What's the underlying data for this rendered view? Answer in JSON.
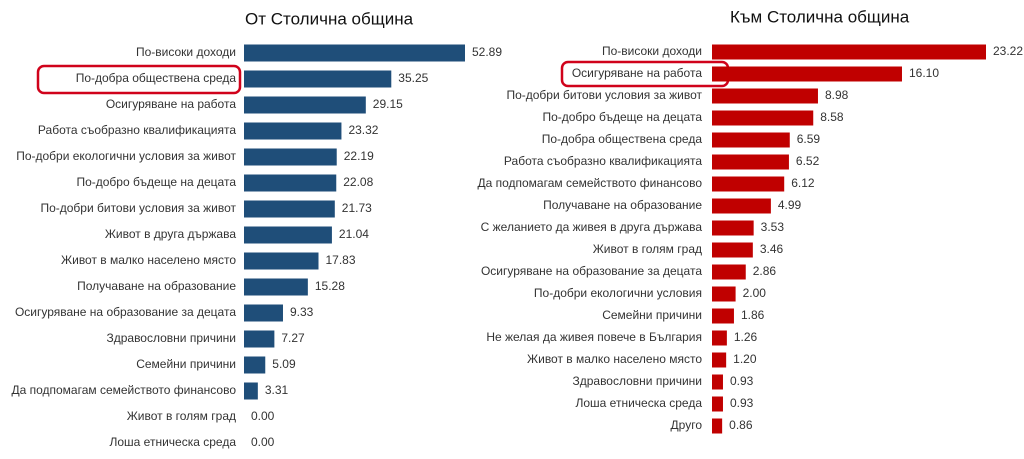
{
  "chart_data": [
    {
      "type": "bar",
      "orientation": "horizontal",
      "title": "От Столична община",
      "color": "#1f4e79",
      "categories": [
        "По-високи доходи",
        "По-добра обществена среда",
        "Осигуряване на работа",
        "Работа съобразно квалификацията",
        "По-добри екологични условия за живот",
        "По-добро бъдеще на децата",
        "По-добри битови условия за живот",
        "Живот в друга държава",
        "Живот в малко населено място",
        "Получаване на образование",
        "Осигуряване на образование за децата",
        "Здравословни причини",
        "Семейни причини",
        "Да подпомагам семейството финансово",
        "Живот в голям град",
        "Лоша етническа среда"
      ],
      "values": [
        52.89,
        35.25,
        29.15,
        23.32,
        22.19,
        22.08,
        21.73,
        21.04,
        17.83,
        15.28,
        9.33,
        7.27,
        5.09,
        3.31,
        0,
        0
      ],
      "value_labels": [
        "52.89",
        "35.25",
        "29.15",
        "23.32",
        "22.19",
        "22.08",
        "21.73",
        "21.04",
        "17.83",
        "15.28",
        "9.33",
        "7.27",
        "5.09",
        "3.31",
        "0.00",
        "0.00"
      ]
    },
    {
      "type": "bar",
      "orientation": "horizontal",
      "title": "Към Столична община",
      "color": "#c00000",
      "categories": [
        "По-високи доходи",
        "Осигуряване на работа",
        "По-добри битови условия за живот",
        "По-добро бъдеще на децата",
        "По-добра обществена среда",
        "Работа съобразно квалификацията",
        "Да подпомагам семейството финансово",
        "Получаване на образование",
        "С желанието да живея в друга държава",
        "Живот в голям град",
        "Осигуряване на образование за децата",
        "По-добри екологични условия",
        "Семейни причини",
        "Не желая да живея повече в България",
        "Живот в малко населено място",
        "Здравословни причини",
        "Лоша етническа среда",
        "Друго"
      ],
      "values": [
        23.22,
        16.1,
        8.98,
        8.58,
        6.59,
        6.52,
        6.12,
        4.99,
        3.53,
        3.46,
        2.86,
        2,
        1.86,
        1.26,
        1.2,
        0.93,
        0.93,
        0.86
      ],
      "value_labels": [
        "23.22",
        "16.10",
        "8.98",
        "8.58",
        "6.59",
        "6.52",
        "6.12",
        "4.99",
        "3.53",
        "3.46",
        "2.86",
        "2.00",
        "1.86",
        "1.26",
        "1.20",
        "0.93",
        "0.93",
        "0.86"
      ]
    }
  ]
}
